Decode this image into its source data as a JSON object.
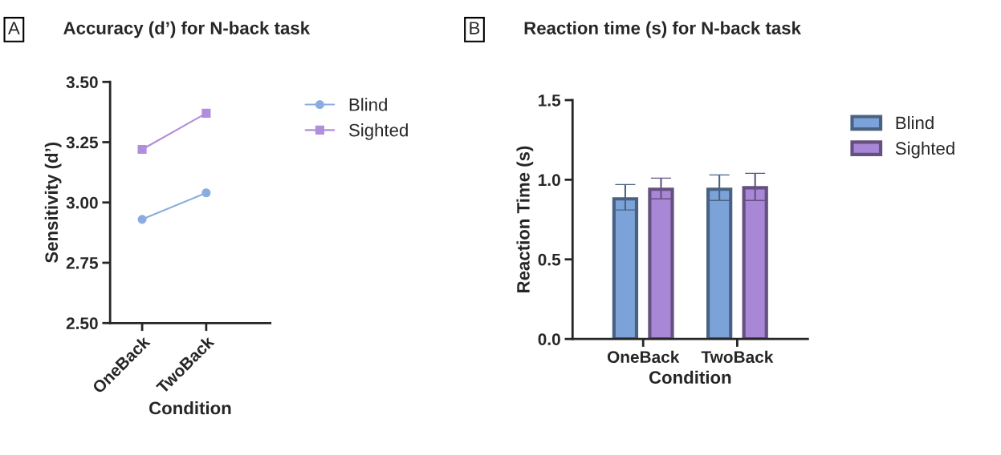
{
  "chart_data": [
    {
      "type": "line",
      "title": "Accuracy (d’) for N-back task",
      "annotations": [
        "A"
      ],
      "xlabel": "Condition",
      "ylabel": "Sensitivity (d’)",
      "categories": [
        "OneBack",
        "TwoBack"
      ],
      "series": [
        {
          "name": "Blind",
          "color": "#8bacdf",
          "marker": "circle",
          "values": [
            2.93,
            3.04
          ]
        },
        {
          "name": "Sighted",
          "color": "#b18ddd",
          "marker": "square",
          "values": [
            3.22,
            3.37
          ]
        }
      ],
      "ylim": [
        2.5,
        3.5
      ],
      "yticks": [
        {
          "value": 2.5,
          "label": "2.50"
        },
        2.75,
        {
          "value": 3,
          "label": "3.00"
        },
        3.25,
        {
          "value": 3.5,
          "label": "3.50"
        }
      ],
      "grid": false,
      "legend": "top right",
      "line_style": "solid"
    },
    {
      "type": "bar",
      "title": "Reaction time (s) for N-back task",
      "annotations": [
        "B"
      ],
      "xlabel": "Condition",
      "ylabel": "Reaction Time (s)",
      "categories": [
        "OneBack",
        "TwoBack"
      ],
      "series": [
        {
          "name": "Blind",
          "color": "#7ba3d9",
          "values": [
            0.88,
            0.94
          ],
          "errors": [
            [
              0.81,
              0.97
            ],
            [
              0.87,
              1.03
            ]
          ]
        },
        {
          "name": "Sighted",
          "color": "#a887d6",
          "values": [
            0.94,
            0.95
          ],
          "errors": [
            [
              0.88,
              1.01
            ],
            [
              0.87,
              1.04
            ]
          ]
        }
      ],
      "ylim": [
        0,
        1.5
      ],
      "yticks": [
        {
          "value": 0,
          "label": "0.0"
        },
        0.5,
        {
          "value": 1,
          "label": "1.0"
        },
        1.5
      ],
      "grid": false,
      "legend": "top right"
    }
  ]
}
